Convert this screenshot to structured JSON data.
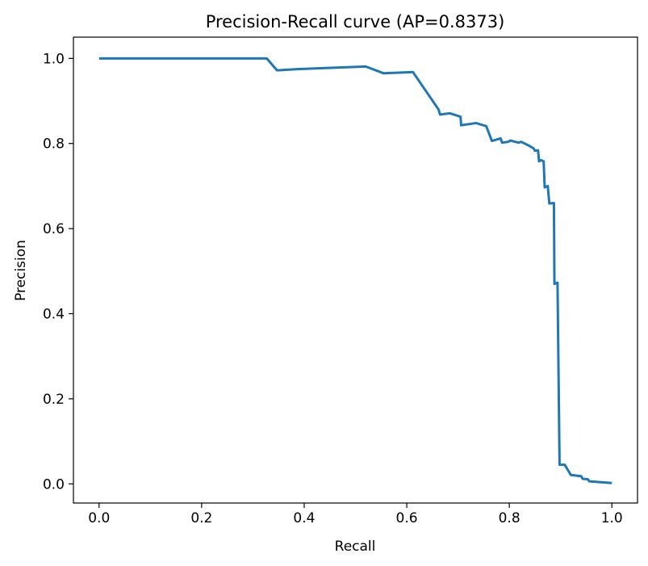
{
  "chart_data": {
    "type": "line",
    "title": "Precision-Recall curve (AP=0.8373)",
    "xlabel": "Recall",
    "ylabel": "Precision",
    "xlim": [
      -0.05,
      1.05
    ],
    "ylim": [
      -0.045,
      1.05
    ],
    "grid": false,
    "legend": "none",
    "x_ticks": [
      "0.0",
      "0.2",
      "0.4",
      "0.6",
      "0.8",
      "1.0"
    ],
    "y_ticks": [
      "0.0",
      "0.2",
      "0.4",
      "0.6",
      "0.8",
      "1.0"
    ],
    "series": [
      {
        "color": "#1f77b4",
        "x": [
          0.0,
          0.327,
          0.347,
          0.39,
          0.52,
          0.555,
          0.612,
          0.662,
          0.665,
          0.684,
          0.705,
          0.706,
          0.735,
          0.755,
          0.766,
          0.783,
          0.786,
          0.798,
          0.802,
          0.818,
          0.823,
          0.835,
          0.847,
          0.85,
          0.856,
          0.858,
          0.862,
          0.867,
          0.869,
          0.875,
          0.878,
          0.887,
          0.888,
          0.894,
          0.898,
          0.908,
          0.92,
          0.94,
          0.943,
          0.953,
          0.956,
          1.0
        ],
        "y": [
          1.0,
          1.0,
          0.972,
          0.975,
          0.981,
          0.965,
          0.968,
          0.88,
          0.868,
          0.871,
          0.863,
          0.843,
          0.848,
          0.841,
          0.806,
          0.812,
          0.802,
          0.804,
          0.807,
          0.802,
          0.804,
          0.797,
          0.789,
          0.783,
          0.784,
          0.758,
          0.761,
          0.758,
          0.697,
          0.7,
          0.659,
          0.66,
          0.47,
          0.473,
          0.045,
          0.045,
          0.021,
          0.018,
          0.012,
          0.011,
          0.006,
          0.002
        ]
      }
    ]
  }
}
